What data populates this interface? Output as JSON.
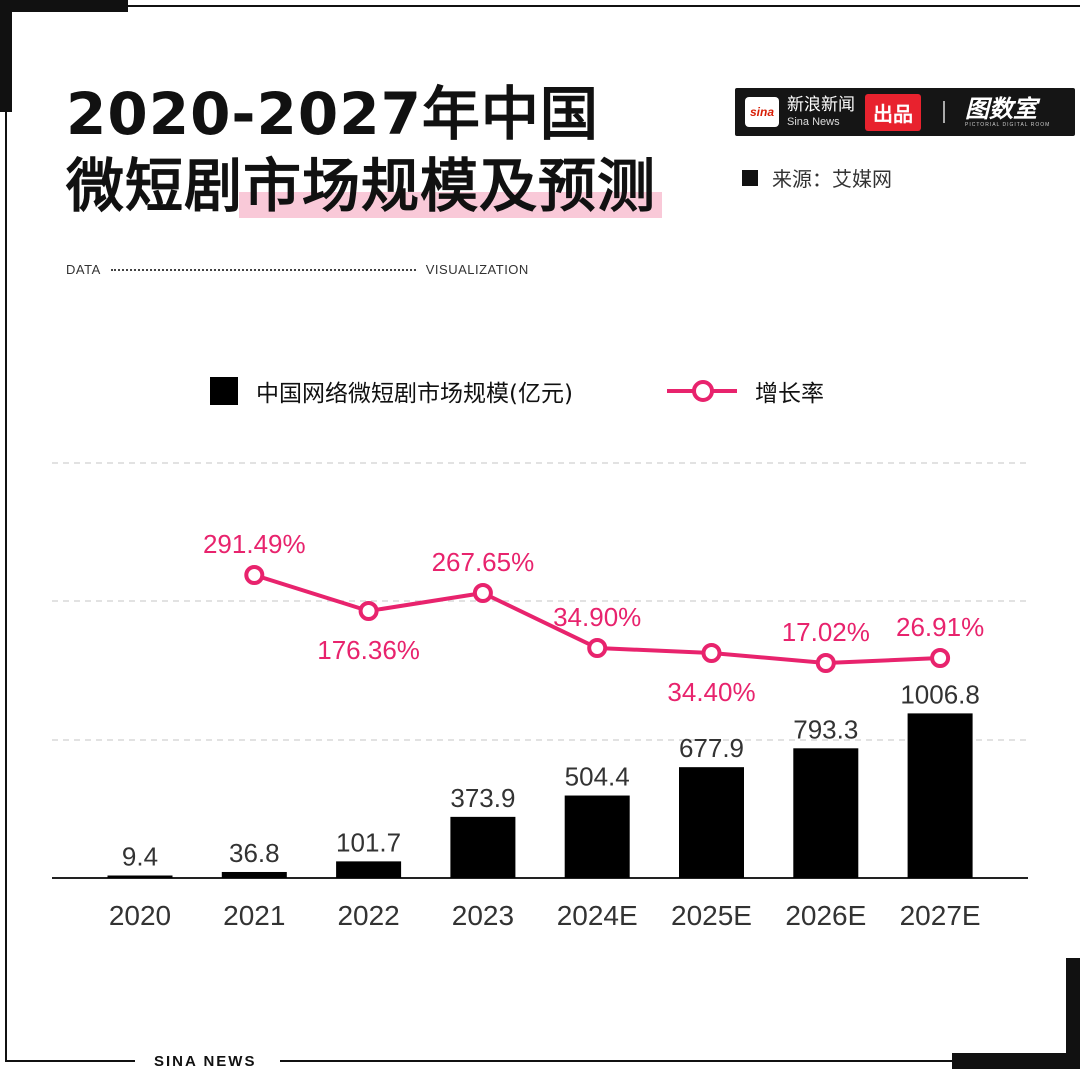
{
  "title": {
    "line1": "2020-2027年中国",
    "line2_plain": "微短剧",
    "line2_highlight": "市场规模及预测"
  },
  "brand": {
    "logo_text": "sina",
    "name_cn": "新浪新闻",
    "name_en": "Sina News",
    "tag": "出品",
    "studio_cn": "图数室",
    "studio_en": "PICTORIAL DIGITAL ROOM"
  },
  "source": "来源：艾媒网",
  "dataviz": {
    "left": "DATA",
    "right": "VISUALIZATION"
  },
  "footer": "SINA  NEWS",
  "colors": {
    "bar": "#000000",
    "line": "#e8236d",
    "grid": "#d9d9d9"
  },
  "chart_data": {
    "type": "bar",
    "categories": [
      "2020",
      "2021",
      "2022",
      "2023",
      "2024E",
      "2025E",
      "2026E",
      "2027E"
    ],
    "series": [
      {
        "name": "中国网络微短剧市场规模(亿元)",
        "type": "bar",
        "values": [
          9.4,
          36.8,
          101.7,
          373.9,
          504.4,
          677.9,
          793.3,
          1006.8
        ],
        "labels": [
          "9.4",
          "36.8",
          "101.7",
          "373.9",
          "504.4",
          "677.9",
          "793.3",
          "1006.8"
        ]
      },
      {
        "name": "增长率",
        "type": "line",
        "values": [
          null,
          291.49,
          176.36,
          267.65,
          34.9,
          34.4,
          17.02,
          26.91
        ],
        "labels": [
          null,
          "291.49%",
          "176.36%",
          "267.65%",
          "34.90%",
          "34.40%",
          "17.02%",
          "26.91%"
        ]
      }
    ],
    "legend": "top",
    "grid": true
  }
}
